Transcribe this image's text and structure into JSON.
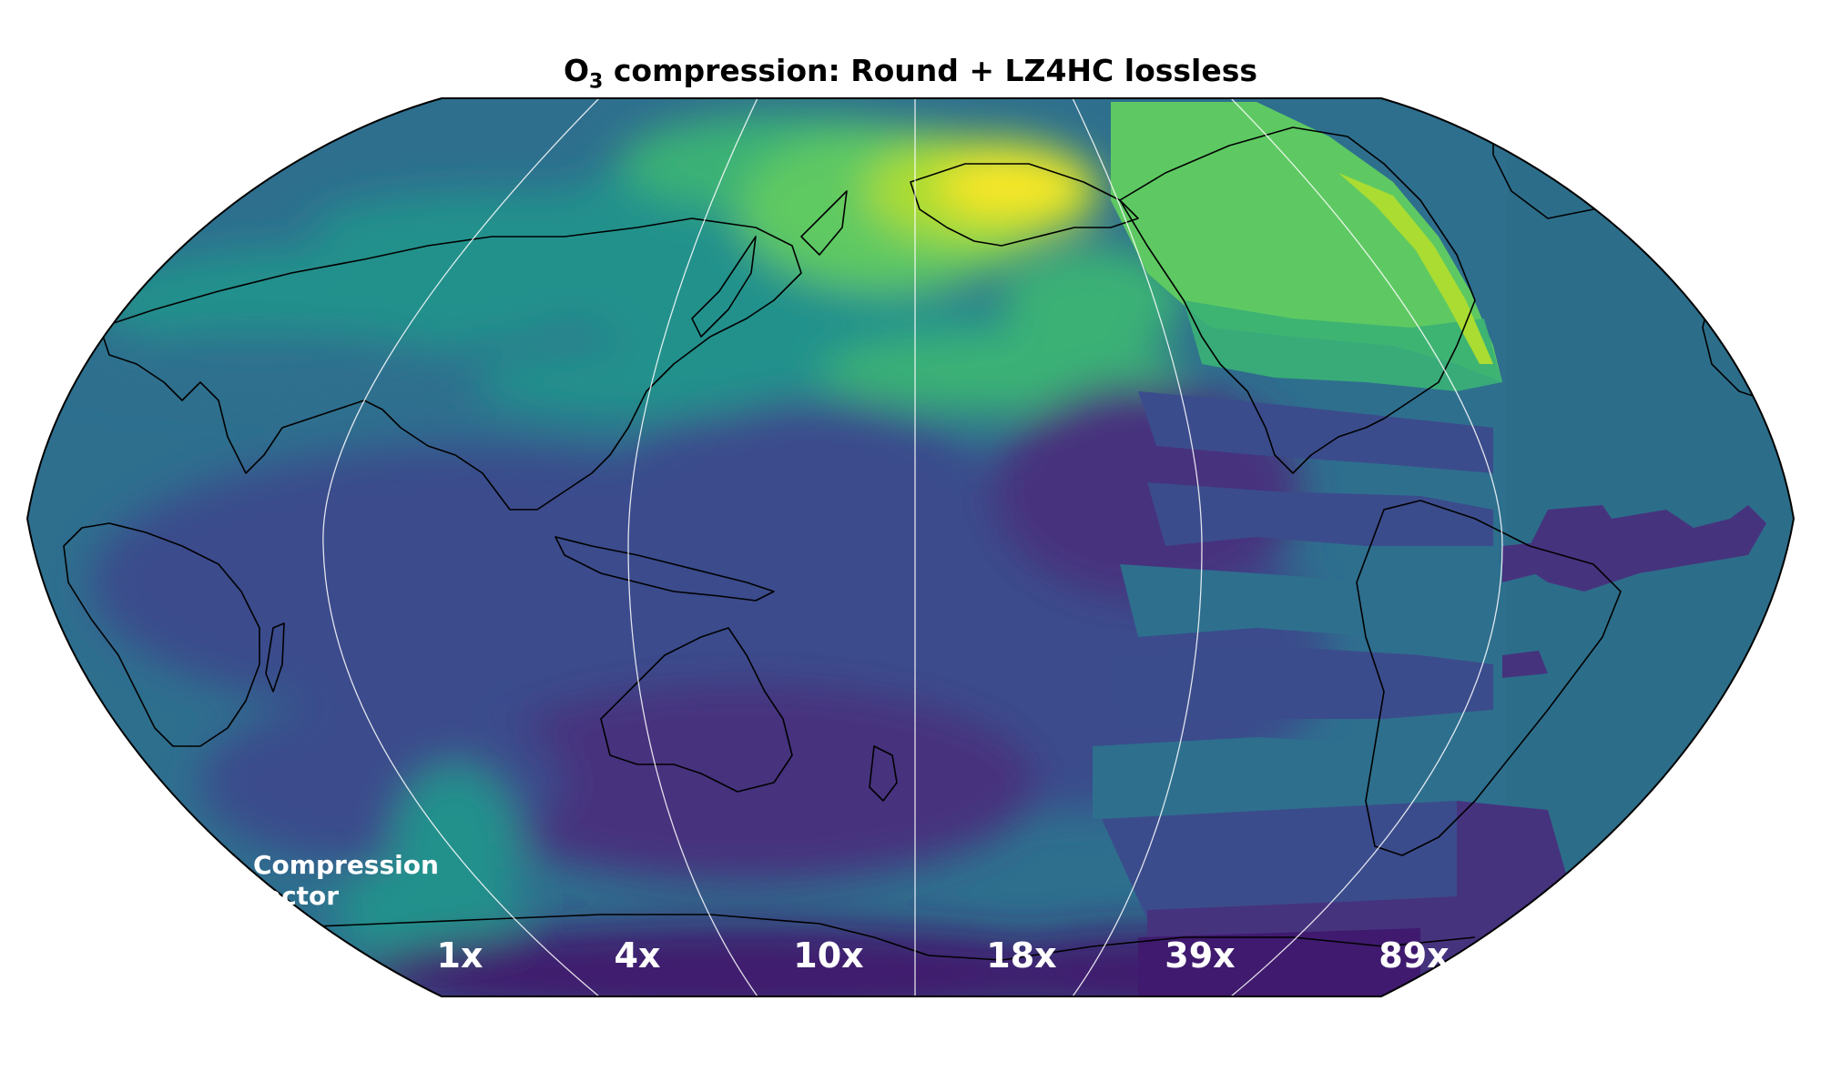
{
  "title": {
    "species_main": "O",
    "species_sub": "3",
    "rest": " compression: Round + LZ4HC lossless"
  },
  "compression_label": {
    "line1": "Compression",
    "line2": "factor"
  },
  "segments": [
    {
      "factor": "1x"
    },
    {
      "factor": "4x"
    },
    {
      "factor": "10x"
    },
    {
      "factor": "18x"
    },
    {
      "factor": "39x"
    },
    {
      "factor": "89x"
    }
  ],
  "map": {
    "projection": "Robinson",
    "central_longitude": "Pacific-centered",
    "colormap": "viridis",
    "colors": {
      "background": "#2c6e8a",
      "deep_purple": "#3f1a6e",
      "purple": "#46337e",
      "indigo": "#3b4c8c",
      "teal_blue": "#2e6f8e",
      "teal": "#21918c",
      "green": "#3bb176",
      "light_green": "#5ec962",
      "yellow_green": "#aadc32",
      "yellow": "#fde725",
      "coastline": "#000000",
      "gridline": "#ffffff"
    }
  }
}
